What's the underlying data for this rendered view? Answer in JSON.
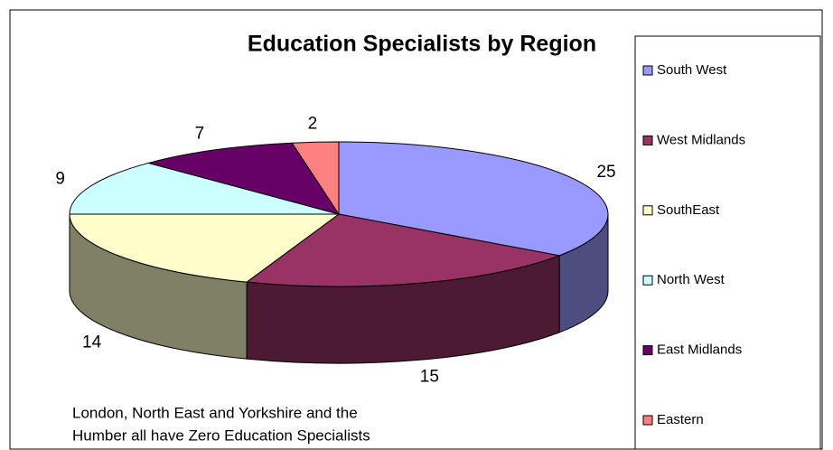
{
  "chart_data": {
    "type": "pie3d",
    "title": "Education Specialists by Region",
    "categories": [
      "South West",
      "West Midlands",
      "SouthEast",
      "North West",
      "East Midlands",
      "Eastern"
    ],
    "values": [
      25,
      15,
      14,
      9,
      7,
      2
    ],
    "colors": [
      "#9999ff",
      "#993366",
      "#ffffcc",
      "#ccffff",
      "#660066",
      "#ff8080"
    ],
    "annotation": [
      "London, North East and Yorkshire and the",
      "Humber all have Zero Education Specialists"
    ],
    "legend": "right"
  }
}
